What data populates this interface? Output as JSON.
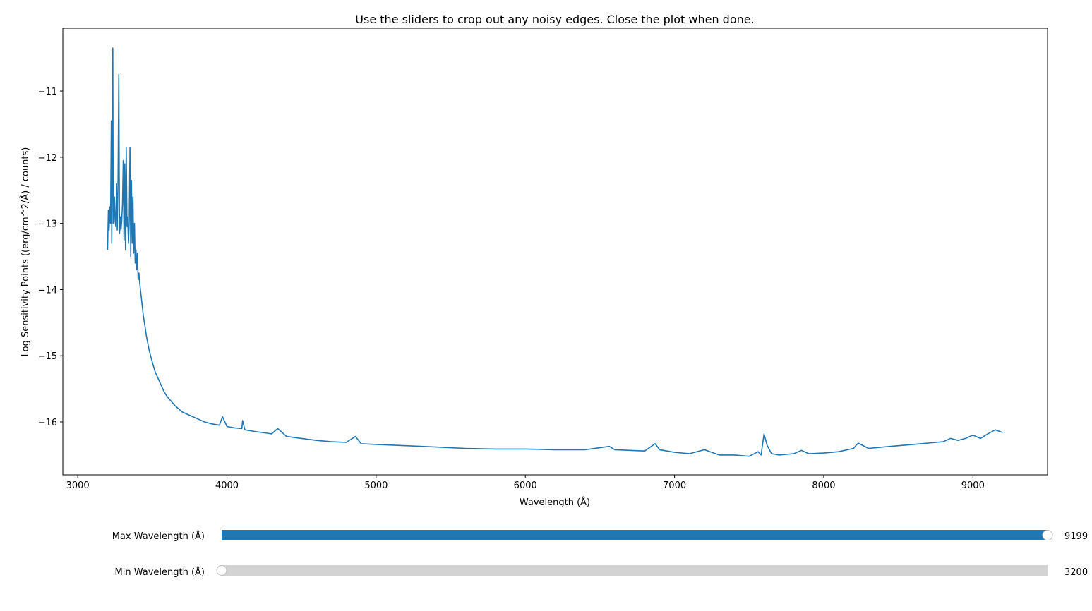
{
  "title": "Use the sliders to crop out any noisy edges. Close the plot when done.",
  "accent_color": "#1f77b4",
  "chart_data": {
    "type": "line",
    "title": "Use the sliders to crop out any noisy edges. Close the plot when done.",
    "xlabel": "Wavelength (Å)",
    "ylabel": "Log Sensitivity Points ((erg/cm^2/Å) / counts)",
    "xlim": [
      2900,
      9500
    ],
    "ylim": [
      -16.8,
      -10.05
    ],
    "xticks": [
      3000,
      4000,
      5000,
      6000,
      7000,
      8000,
      9000
    ],
    "yticks": [
      -11,
      -12,
      -13,
      -14,
      -15,
      -16
    ],
    "ytick_labels": [
      "−11",
      "−12",
      "−13",
      "−14",
      "−15",
      "−16"
    ],
    "grid": false,
    "series": [
      {
        "color": "#1f77b4",
        "x": [
          3200,
          3205,
          3210,
          3215,
          3220,
          3225,
          3228,
          3232,
          3235,
          3238,
          3242,
          3246,
          3250,
          3255,
          3260,
          3265,
          3270,
          3275,
          3280,
          3285,
          3290,
          3295,
          3300,
          3305,
          3310,
          3315,
          3320,
          3325,
          3330,
          3335,
          3340,
          3345,
          3350,
          3355,
          3360,
          3365,
          3370,
          3375,
          3380,
          3385,
          3390,
          3395,
          3400,
          3405,
          3410,
          3415,
          3420,
          3425,
          3430,
          3440,
          3450,
          3460,
          3470,
          3480,
          3500,
          3520,
          3540,
          3560,
          3580,
          3600,
          3650,
          3700,
          3750,
          3800,
          3850,
          3900,
          3950,
          3970,
          4000,
          4050,
          4100,
          4105,
          4120,
          4200,
          4300,
          4340,
          4400,
          4500,
          4600,
          4700,
          4800,
          4861,
          4900,
          5000,
          5200,
          5400,
          5600,
          5800,
          6000,
          6200,
          6400,
          6563,
          6600,
          6800,
          6870,
          6900,
          7000,
          7100,
          7200,
          7250,
          7300,
          7400,
          7500,
          7560,
          7580,
          7600,
          7620,
          7650,
          7700,
          7800,
          7850,
          7900,
          8000,
          8100,
          8200,
          8230,
          8300,
          8400,
          8500,
          8600,
          8700,
          8800,
          8850,
          8900,
          8950,
          9000,
          9050,
          9100,
          9150,
          9199
        ],
        "y": [
          -13.4,
          -12.8,
          -13.1,
          -12.75,
          -13.0,
          -11.45,
          -13.3,
          -11.7,
          -10.35,
          -13.0,
          -12.8,
          -12.6,
          -12.95,
          -13.05,
          -12.4,
          -13.1,
          -12.35,
          -10.75,
          -13.15,
          -12.9,
          -13.1,
          -12.95,
          -12.7,
          -12.05,
          -13.25,
          -12.1,
          -13.4,
          -11.85,
          -13.05,
          -12.9,
          -13.3,
          -12.95,
          -11.85,
          -13.5,
          -12.35,
          -13.3,
          -12.6,
          -13.45,
          -13.0,
          -13.6,
          -13.4,
          -13.7,
          -13.45,
          -13.85,
          -13.75,
          -13.9,
          -14.0,
          -14.1,
          -14.2,
          -14.4,
          -14.55,
          -14.7,
          -14.82,
          -14.93,
          -15.1,
          -15.25,
          -15.35,
          -15.45,
          -15.55,
          -15.62,
          -15.75,
          -15.85,
          -15.9,
          -15.95,
          -16.0,
          -16.03,
          -16.05,
          -15.92,
          -16.07,
          -16.09,
          -16.1,
          -15.98,
          -16.12,
          -16.15,
          -16.18,
          -16.1,
          -16.22,
          -16.25,
          -16.28,
          -16.3,
          -16.31,
          -16.22,
          -16.33,
          -16.34,
          -16.36,
          -16.38,
          -16.4,
          -16.41,
          -16.41,
          -16.42,
          -16.42,
          -16.37,
          -16.42,
          -16.44,
          -16.33,
          -16.42,
          -16.46,
          -16.48,
          -16.42,
          -16.46,
          -16.5,
          -16.5,
          -16.52,
          -16.45,
          -16.5,
          -16.18,
          -16.35,
          -16.48,
          -16.5,
          -16.48,
          -16.43,
          -16.48,
          -16.47,
          -16.45,
          -16.4,
          -16.32,
          -16.4,
          -16.38,
          -16.36,
          -16.34,
          -16.32,
          -16.3,
          -16.25,
          -16.28,
          -16.25,
          -16.2,
          -16.25,
          -16.18,
          -16.12,
          -16.16
        ]
      }
    ]
  },
  "sliders": [
    {
      "label": "Max Wavelength (Å)",
      "value": "9199",
      "fill_fraction": 1.0,
      "fill_color": "#1f77b4",
      "track_color": "#d3d3d3"
    },
    {
      "label": "Min Wavelength (Å)",
      "value": "3200",
      "fill_fraction": 0.0,
      "fill_color": "#1f77b4",
      "track_color": "#d3d3d3"
    }
  ]
}
